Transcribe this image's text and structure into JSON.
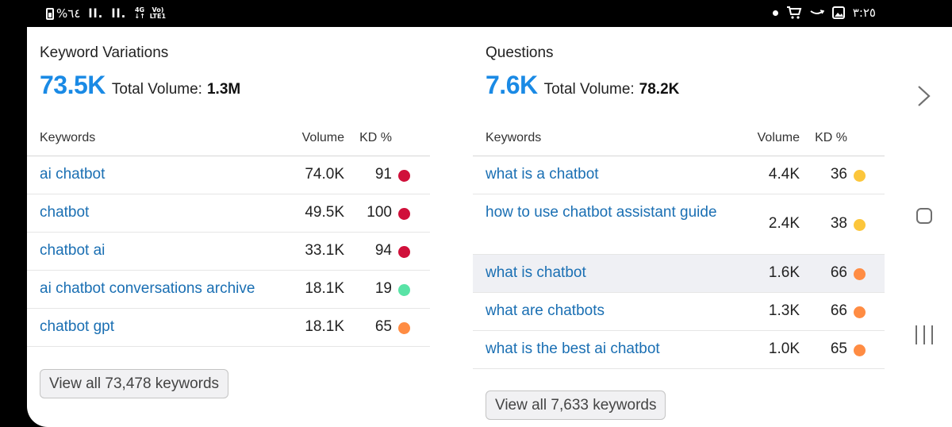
{
  "status_bar": {
    "battery_text": "%٦٤",
    "signal_1": "ll.",
    "signal_2": "ll.",
    "network_top": "4G",
    "network_bottom": "↓↑",
    "volte_top": "Vo)",
    "volte_bottom": "LTE1",
    "time": "٣:٢٥"
  },
  "panels": {
    "left": {
      "title": "Keyword Variations",
      "count": "73.5K",
      "total_volume_label": "Total Volume:",
      "total_volume_value": "1.3M",
      "columns": {
        "keywords": "Keywords",
        "volume": "Volume",
        "kd": "KD %"
      },
      "rows": [
        {
          "keyword": "ai chatbot",
          "volume": "74.0K",
          "kd": "91",
          "kd_color": "#d0103a"
        },
        {
          "keyword": "chatbot",
          "volume": "49.5K",
          "kd": "100",
          "kd_color": "#d0103a"
        },
        {
          "keyword": "chatbot ai",
          "volume": "33.1K",
          "kd": "94",
          "kd_color": "#d0103a"
        },
        {
          "keyword": "ai chatbot conversations archive",
          "volume": "18.1K",
          "kd": "19",
          "kd_color": "#59e3a6"
        },
        {
          "keyword": "chatbot gpt",
          "volume": "18.1K",
          "kd": "65",
          "kd_color": "#ff8c43"
        }
      ],
      "view_all": "View all 73,478 keywords"
    },
    "right": {
      "title": "Questions",
      "count": "7.6K",
      "total_volume_label": "Total Volume:",
      "total_volume_value": "78.2K",
      "columns": {
        "keywords": "Keywords",
        "volume": "Volume",
        "kd": "KD %"
      },
      "rows": [
        {
          "keyword": "what is a chatbot",
          "volume": "4.4K",
          "kd": "36",
          "kd_color": "#fcc63b"
        },
        {
          "keyword": "how to use chatbot assistant guide",
          "volume": "2.4K",
          "kd": "38",
          "kd_color": "#fcc63b"
        },
        {
          "keyword": "what is chatbot",
          "volume": "1.6K",
          "kd": "66",
          "kd_color": "#ff8c43"
        },
        {
          "keyword": "what are chatbots",
          "volume": "1.3K",
          "kd": "66",
          "kd_color": "#ff8c43"
        },
        {
          "keyword": "what is the best ai chatbot",
          "volume": "1.0K",
          "kd": "65",
          "kd_color": "#ff8c43"
        }
      ],
      "view_all": "View all 7,633 keywords"
    }
  }
}
